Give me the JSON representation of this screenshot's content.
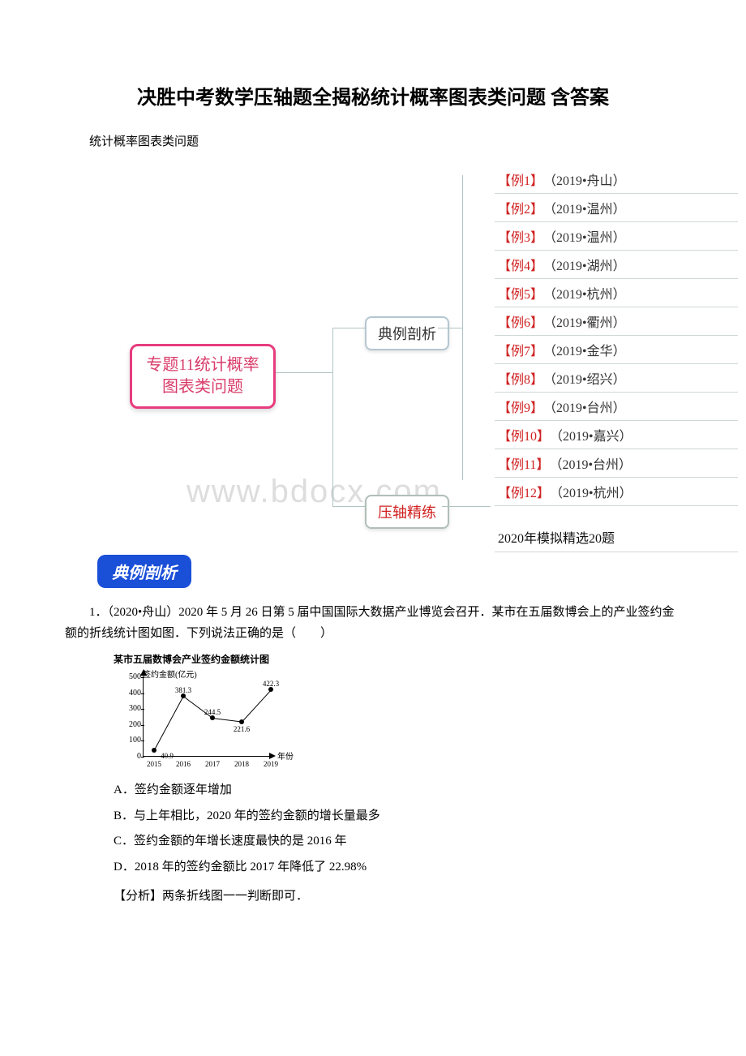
{
  "title": "决胜中考数学压轴题全揭秘统计概率图表类问题 含答案",
  "subtitle": "统计概率图表类问题",
  "watermark": "www.bdocx.com",
  "mindmap": {
    "root_line1": "专题11统计概率",
    "root_line2": "图表类问题",
    "root_border": "#e73c7e",
    "root_text_color": "#d93c6a",
    "branch_example": "典例剖析",
    "branch_practice": "压轴精练",
    "branch_practice_color": "#d02020",
    "examples": [
      {
        "tag": "【例1】",
        "src": "（2019•舟山）"
      },
      {
        "tag": "【例2】",
        "src": "（2019•温州）"
      },
      {
        "tag": "【例3】",
        "src": "（2019•温州）"
      },
      {
        "tag": "【例4】",
        "src": "（2019•湖州）"
      },
      {
        "tag": "【例5】",
        "src": "（2019•杭州）"
      },
      {
        "tag": "【例6】",
        "src": "（2019•衢州）"
      },
      {
        "tag": "【例7】",
        "src": "（2019•金华）"
      },
      {
        "tag": "【例8】",
        "src": "（2019•绍兴）"
      },
      {
        "tag": "【例9】",
        "src": "（2019•台州）"
      },
      {
        "tag": "【例10】",
        "src": "（2019•嘉兴）"
      },
      {
        "tag": "【例11】",
        "src": "（2019•台州）"
      },
      {
        "tag": "【例12】",
        "src": "（2019•杭州）"
      }
    ],
    "sim_label": "2020年模拟精选20题"
  },
  "badge_text": "典例剖析",
  "question": {
    "stem": "1．（2020•舟山）2020 年 5 月 26 日第 5 届中国国际大数据产业博览会召开．某市在五届数博会上的产业签约金额的折线统计图如图．下列说法正确的是（　　）",
    "options": {
      "A": "A．签约金额逐年增加",
      "B": "B．与上年相比，2020 年的签约金额的增长量最多",
      "C": "C．签约金额的年增长速度最快的是 2016 年",
      "D": "D．2018 年的签约金额比 2017 年降低了 22.98%"
    },
    "analysis_label": "【分析】",
    "analysis_text": "两条折线图一一判断即可．"
  },
  "chart": {
    "title": "某市五届数博会产业签约金额统计图",
    "ylabel": "签约金额(亿元)",
    "xlabel": "年份",
    "ylim": [
      0,
      500
    ],
    "ytick_step": 100,
    "yticks": [
      0,
      100,
      200,
      300,
      400,
      500
    ],
    "x_categories": [
      "2015",
      "2016",
      "2017",
      "2018",
      "2019"
    ],
    "values": [
      40.9,
      381.3,
      244.5,
      221.6,
      422.3
    ],
    "point_color": "#000000",
    "line_color": "#000000",
    "background_color": "#ffffff",
    "axis_color": "#000000",
    "label_fontsize": 10,
    "point_radius": 3
  },
  "colors": {
    "badge_bg": "#1a4fd8",
    "badge_text": "#ffffff",
    "item_border": "#cfd8d6",
    "tag_color": "#d02020"
  }
}
